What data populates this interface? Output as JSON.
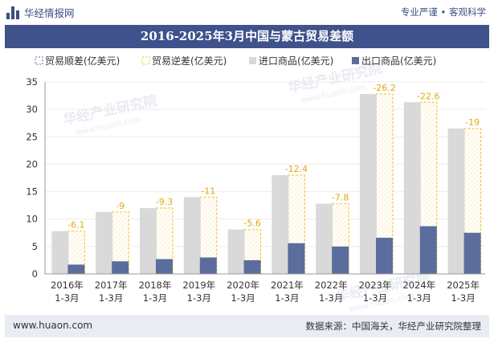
{
  "header": {
    "brand": "华经情报网",
    "slogan": "专业严谨 • 客观科学"
  },
  "footer": {
    "website": "www.huaon.com",
    "source": "数据来源：中国海关，华经产业研究院整理"
  },
  "watermark": "华经产业研究院",
  "watermark_url": "www.huaon.com",
  "colors": {
    "title_bg": "#3f528c",
    "import": "#d9d9d9",
    "export": "#5b6d9c",
    "deficit": "#f0c02b",
    "surplus": "#5b6d9c"
  },
  "chart_data": {
    "type": "bar",
    "title": "2016-2025年3月中国与蒙古贸易差额",
    "categories": [
      [
        "2016年",
        "1-3月"
      ],
      [
        "2017年",
        "1-3月"
      ],
      [
        "2018年",
        "1-3月"
      ],
      [
        "2019年",
        "1-3月"
      ],
      [
        "2020年",
        "1-3月"
      ],
      [
        "2021年",
        "1-3月"
      ],
      [
        "2022年",
        "1-3月"
      ],
      [
        "2023年",
        "1-3月"
      ],
      [
        "2024年",
        "1-3月"
      ],
      [
        "2025年",
        "1-3月"
      ]
    ],
    "ylim": [
      0,
      35
    ],
    "yticks": [
      0,
      5,
      10,
      15,
      20,
      25,
      30,
      35
    ],
    "legend": [
      "贸易顺差(亿美元)",
      "贸易逆差(亿美元)",
      "进口商品(亿美元)",
      "出口商品(亿美元)"
    ],
    "series": [
      {
        "name": "进口商品(亿美元)",
        "values": [
          7.8,
          11.3,
          12.0,
          14.0,
          8.1,
          18.0,
          12.8,
          32.8,
          31.3,
          26.5
        ]
      },
      {
        "name": "出口商品(亿美元)",
        "values": [
          1.7,
          2.3,
          2.7,
          3.0,
          2.5,
          5.6,
          5.0,
          6.6,
          8.7,
          7.5
        ]
      },
      {
        "name": "贸易逆差(亿美元)",
        "values": [
          -6.1,
          -9,
          -9.3,
          -11,
          -5.6,
          -12.4,
          -7.8,
          -26.2,
          -22.6,
          -19
        ]
      }
    ]
  }
}
